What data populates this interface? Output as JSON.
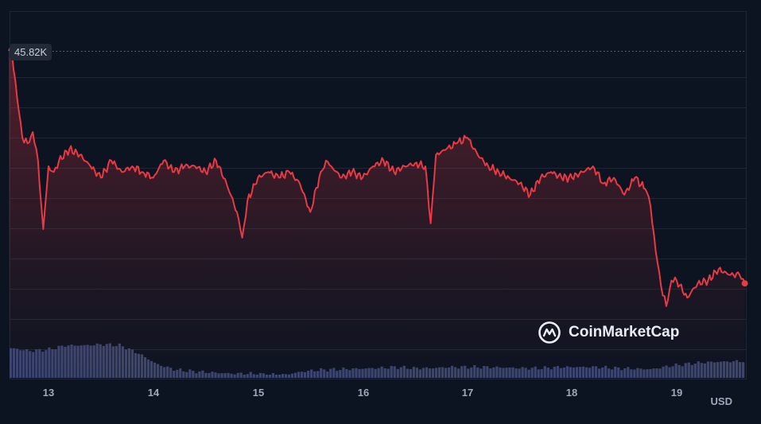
{
  "chart_data": {
    "type": "line",
    "title": "",
    "xlabel": "",
    "ylabel": "",
    "unit_label": "USD",
    "current_price_label": "45.82K",
    "x_ticks": [
      "13",
      "14",
      "15",
      "16",
      "17",
      "18",
      "19"
    ],
    "grid": true,
    "series": [
      {
        "x": [
          12.62,
          12.65,
          12.7,
          12.75,
          12.8,
          12.85,
          12.9,
          12.95,
          13.0,
          13.05,
          13.1,
          13.2,
          13.3,
          13.4,
          13.5,
          13.6,
          13.7,
          13.8,
          13.9,
          14.0,
          14.1,
          14.2,
          14.3,
          14.4,
          14.5,
          14.6,
          14.7,
          14.8,
          14.85,
          14.9,
          15.0,
          15.1,
          15.2,
          15.3,
          15.4,
          15.5,
          15.6,
          15.65,
          15.7,
          15.8,
          15.9,
          16.0,
          16.1,
          16.2,
          16.3,
          16.4,
          16.5,
          16.6,
          16.65,
          16.7,
          16.8,
          16.9,
          17.0,
          17.1,
          17.2,
          17.3,
          17.4,
          17.5,
          17.6,
          17.7,
          17.8,
          17.9,
          18.0,
          18.1,
          18.2,
          18.3,
          18.4,
          18.5,
          18.6,
          18.7,
          18.75,
          18.8,
          18.85,
          18.9,
          18.95,
          19.0,
          19.1,
          19.2,
          19.3,
          19.4,
          19.5,
          19.6,
          19.65
        ],
        "values": [
          45.82,
          45.8,
          45.0,
          44.3,
          44.2,
          44.4,
          43.9,
          42.7,
          43.8,
          43.7,
          43.9,
          44.1,
          44.0,
          43.8,
          43.6,
          43.9,
          43.7,
          43.8,
          43.7,
          43.6,
          43.9,
          43.7,
          43.8,
          43.8,
          43.7,
          43.9,
          43.5,
          43.0,
          42.55,
          43.2,
          43.6,
          43.7,
          43.6,
          43.7,
          43.5,
          43.0,
          43.7,
          43.9,
          43.8,
          43.6,
          43.7,
          43.6,
          43.8,
          43.9,
          43.7,
          43.8,
          43.85,
          43.8,
          42.8,
          44.0,
          44.1,
          44.2,
          44.3,
          44.0,
          43.8,
          43.7,
          43.6,
          43.5,
          43.3,
          43.6,
          43.7,
          43.6,
          43.6,
          43.7,
          43.8,
          43.5,
          43.6,
          43.3,
          43.6,
          43.4,
          43.1,
          42.3,
          41.7,
          41.35,
          41.8,
          41.8,
          41.5,
          41.75,
          41.8,
          42.0,
          41.9,
          41.9,
          41.75
        ]
      }
    ],
    "volume_shape": [
      0.55,
      0.5,
      0.52,
      0.6,
      0.6,
      0.62,
      0.6,
      0.45,
      0.25,
      0.15,
      0.12,
      0.1,
      0.08,
      0.08,
      0.06,
      0.06,
      0.12,
      0.15,
      0.16,
      0.17,
      0.18,
      0.2,
      0.18,
      0.18,
      0.2,
      0.2,
      0.2,
      0.19,
      0.18,
      0.18,
      0.2,
      0.2,
      0.2,
      0.18,
      0.17,
      0.16,
      0.22,
      0.26,
      0.29,
      0.3,
      0.31
    ]
  },
  "watermark": {
    "text": "CoinMarketCap",
    "icon": "coinmarketcap-logo-icon"
  },
  "colors": {
    "background": "#0d1421",
    "line": "#ea3943",
    "grid": "#1f2735",
    "volume": "#3b4570"
  }
}
